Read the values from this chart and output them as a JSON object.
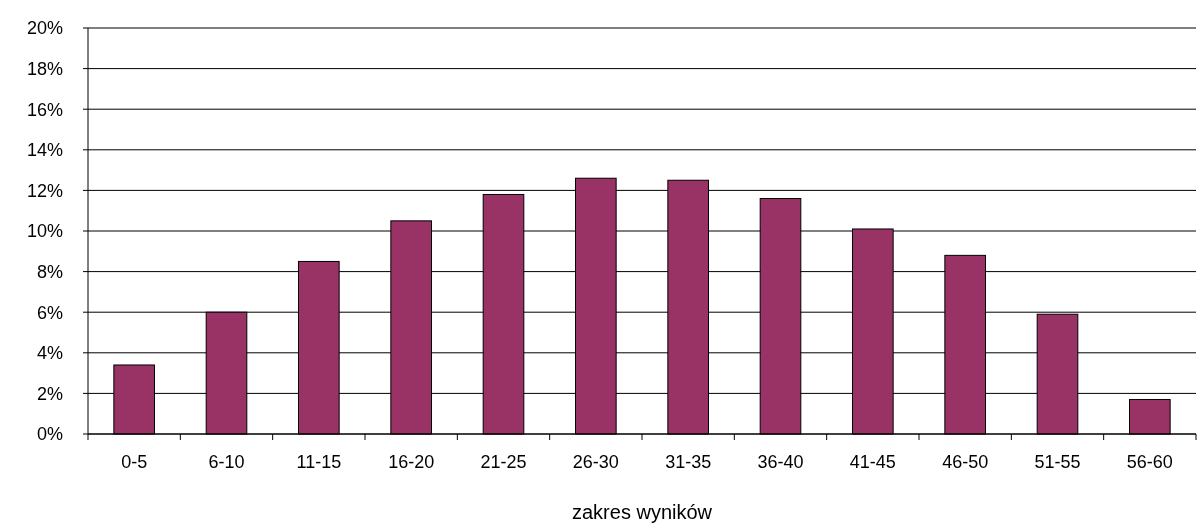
{
  "chart_data": {
    "type": "bar",
    "xlabel": "zakres wyników",
    "categories": [
      "0-5",
      "6-10",
      "11-15",
      "16-20",
      "21-25",
      "26-30",
      "31-35",
      "36-40",
      "41-45",
      "46-50",
      "51-55",
      "56-60"
    ],
    "values": [
      3.4,
      6.0,
      8.5,
      10.5,
      11.8,
      12.6,
      12.5,
      11.6,
      10.1,
      8.8,
      5.9,
      1.7
    ],
    "color": "#993366",
    "ylim": [
      0,
      20
    ],
    "yticks": [
      {
        "value": 0,
        "label": "0%"
      },
      {
        "value": 2,
        "label": "2%"
      },
      {
        "value": 4,
        "label": "4%"
      },
      {
        "value": 6,
        "label": "6%"
      },
      {
        "value": 8,
        "label": "8%"
      },
      {
        "value": 10,
        "label": "10%"
      },
      {
        "value": 12,
        "label": "12%"
      },
      {
        "value": 14,
        "label": "14%"
      },
      {
        "value": 16,
        "label": "16%"
      },
      {
        "value": 18,
        "label": "18%"
      },
      {
        "value": 20,
        "label": "20%"
      }
    ],
    "grid": "y"
  }
}
